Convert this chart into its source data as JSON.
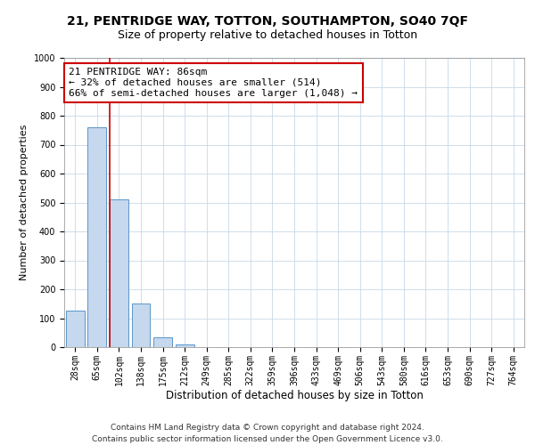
{
  "title_line1": "21, PENTRIDGE WAY, TOTTON, SOUTHAMPTON, SO40 7QF",
  "title_line2": "Size of property relative to detached houses in Totton",
  "xlabel": "Distribution of detached houses by size in Totton",
  "ylabel": "Number of detached properties",
  "footer_line1": "Contains HM Land Registry data © Crown copyright and database right 2024.",
  "footer_line2": "Contains public sector information licensed under the Open Government Licence v3.0.",
  "categories": [
    "28sqm",
    "65sqm",
    "102sqm",
    "138sqm",
    "175sqm",
    "212sqm",
    "249sqm",
    "285sqm",
    "322sqm",
    "359sqm",
    "396sqm",
    "433sqm",
    "469sqm",
    "506sqm",
    "543sqm",
    "580sqm",
    "616sqm",
    "653sqm",
    "690sqm",
    "727sqm",
    "764sqm"
  ],
  "values": [
    125,
    760,
    510,
    150,
    35,
    10,
    0,
    0,
    0,
    0,
    0,
    0,
    0,
    0,
    0,
    0,
    0,
    0,
    0,
    0,
    0
  ],
  "bar_color": "#c5d8ed",
  "bar_edge_color": "#5a96c8",
  "ylim": [
    0,
    1000
  ],
  "yticks": [
    0,
    100,
    200,
    300,
    400,
    500,
    600,
    700,
    800,
    900,
    1000
  ],
  "property_line_label": "21 PENTRIDGE WAY: 86sqm",
  "annotation_line1": "← 32% of detached houses are smaller (514)",
  "annotation_line2": "66% of semi-detached houses are larger (1,048) →",
  "annotation_box_color": "#ffffff",
  "annotation_box_edge_color": "#cc0000",
  "vline_color": "#cc0000",
  "background_color": "#ffffff",
  "grid_color": "#c8d8e8",
  "title1_fontsize": 10,
  "title2_fontsize": 9,
  "xlabel_fontsize": 8.5,
  "ylabel_fontsize": 8,
  "tick_fontsize": 7,
  "annotation_fontsize": 8,
  "footer_fontsize": 6.5,
  "vline_x_pos": 1.57
}
